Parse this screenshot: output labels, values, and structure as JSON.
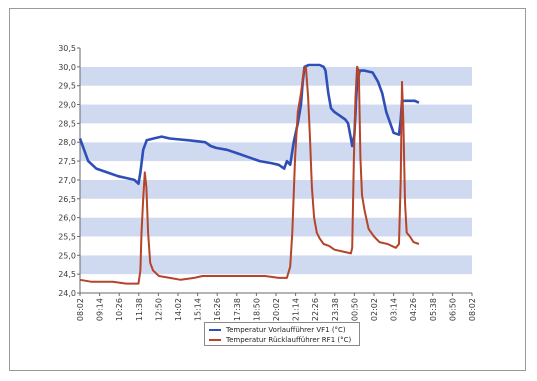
{
  "chart_data": {
    "type": "line",
    "title": "",
    "xlabel": "",
    "ylabel": "",
    "ylim": [
      24.0,
      30.5
    ],
    "y_ticks": [
      "24,0",
      "24,5",
      "25,0",
      "25,5",
      "26,0",
      "26,5",
      "27,0",
      "27,5",
      "28,0",
      "28,5",
      "29,0",
      "29,5",
      "30,0",
      "30,5"
    ],
    "x_ticks": [
      "08:02",
      "09:14",
      "10:26",
      "11:38",
      "12:50",
      "14:02",
      "15:14",
      "16:26",
      "17:38",
      "18:50",
      "20:02",
      "21:14",
      "22:26",
      "23:38",
      "00:50",
      "02:02",
      "03:14",
      "04:26",
      "05:38",
      "06:50",
      "08:02"
    ],
    "xlim": [
      0,
      1440
    ],
    "grid": "alternating horizontal bands",
    "legend_position": "bottom-center",
    "series": [
      {
        "name": "Temperatur Vorlaufführer VF1 (°C)",
        "color": "#2f4fb8",
        "points": [
          [
            0,
            28.1
          ],
          [
            15,
            27.8
          ],
          [
            30,
            27.5
          ],
          [
            60,
            27.3
          ],
          [
            100,
            27.2
          ],
          [
            140,
            27.1
          ],
          [
            200,
            27.0
          ],
          [
            215,
            26.9
          ],
          [
            222,
            27.2
          ],
          [
            232,
            27.8
          ],
          [
            245,
            28.05
          ],
          [
            270,
            28.1
          ],
          [
            300,
            28.15
          ],
          [
            330,
            28.1
          ],
          [
            400,
            28.05
          ],
          [
            460,
            28.0
          ],
          [
            480,
            27.9
          ],
          [
            500,
            27.85
          ],
          [
            540,
            27.8
          ],
          [
            580,
            27.7
          ],
          [
            620,
            27.6
          ],
          [
            660,
            27.5
          ],
          [
            700,
            27.45
          ],
          [
            730,
            27.4
          ],
          [
            750,
            27.3
          ],
          [
            760,
            27.5
          ],
          [
            772,
            27.4
          ],
          [
            785,
            28.0
          ],
          [
            800,
            28.5
          ],
          [
            812,
            29.0
          ],
          [
            818,
            29.6
          ],
          [
            825,
            30.0
          ],
          [
            840,
            30.05
          ],
          [
            880,
            30.05
          ],
          [
            895,
            30.0
          ],
          [
            902,
            29.9
          ],
          [
            912,
            29.3
          ],
          [
            922,
            28.9
          ],
          [
            935,
            28.8
          ],
          [
            955,
            28.7
          ],
          [
            975,
            28.6
          ],
          [
            985,
            28.5
          ],
          [
            995,
            28.1
          ],
          [
            1000,
            27.9
          ],
          [
            1008,
            28.2
          ],
          [
            1018,
            29.6
          ],
          [
            1028,
            29.9
          ],
          [
            1045,
            29.9
          ],
          [
            1075,
            29.85
          ],
          [
            1095,
            29.6
          ],
          [
            1110,
            29.3
          ],
          [
            1125,
            28.8
          ],
          [
            1140,
            28.5
          ],
          [
            1152,
            28.25
          ],
          [
            1172,
            28.2
          ],
          [
            1178,
            28.6
          ],
          [
            1183,
            29.1
          ],
          [
            1200,
            29.1
          ],
          [
            1230,
            29.1
          ],
          [
            1245,
            29.05
          ]
        ]
      },
      {
        "name": "Temperatur Rücklaufführer RF1 (°C)",
        "color": "#b5442a",
        "points": [
          [
            0,
            24.35
          ],
          [
            40,
            24.3
          ],
          [
            80,
            24.3
          ],
          [
            120,
            24.3
          ],
          [
            170,
            24.25
          ],
          [
            215,
            24.25
          ],
          [
            222,
            24.6
          ],
          [
            226,
            25.6
          ],
          [
            232,
            26.5
          ],
          [
            238,
            27.2
          ],
          [
            244,
            26.8
          ],
          [
            250,
            25.6
          ],
          [
            258,
            24.8
          ],
          [
            268,
            24.6
          ],
          [
            290,
            24.45
          ],
          [
            330,
            24.4
          ],
          [
            370,
            24.35
          ],
          [
            420,
            24.4
          ],
          [
            450,
            24.45
          ],
          [
            500,
            24.45
          ],
          [
            560,
            24.45
          ],
          [
            620,
            24.45
          ],
          [
            680,
            24.45
          ],
          [
            730,
            24.4
          ],
          [
            760,
            24.4
          ],
          [
            772,
            24.7
          ],
          [
            780,
            25.6
          ],
          [
            790,
            27.6
          ],
          [
            800,
            28.8
          ],
          [
            812,
            29.3
          ],
          [
            822,
            29.9
          ],
          [
            830,
            30.0
          ],
          [
            838,
            29.2
          ],
          [
            845,
            28.1
          ],
          [
            852,
            26.8
          ],
          [
            860,
            26.0
          ],
          [
            870,
            25.6
          ],
          [
            880,
            25.45
          ],
          [
            895,
            25.3
          ],
          [
            915,
            25.25
          ],
          [
            935,
            25.15
          ],
          [
            965,
            25.1
          ],
          [
            995,
            25.05
          ],
          [
            1000,
            25.2
          ],
          [
            1006,
            27.6
          ],
          [
            1012,
            29.2
          ],
          [
            1018,
            30.0
          ],
          [
            1024,
            29.9
          ],
          [
            1030,
            27.6
          ],
          [
            1036,
            26.6
          ],
          [
            1045,
            26.2
          ],
          [
            1060,
            25.7
          ],
          [
            1080,
            25.5
          ],
          [
            1100,
            25.35
          ],
          [
            1130,
            25.3
          ],
          [
            1160,
            25.2
          ],
          [
            1172,
            25.3
          ],
          [
            1178,
            27.0
          ],
          [
            1183,
            29.6
          ],
          [
            1188,
            28.5
          ],
          [
            1194,
            26.4
          ],
          [
            1200,
            25.6
          ],
          [
            1212,
            25.5
          ],
          [
            1225,
            25.35
          ],
          [
            1245,
            25.3
          ]
        ]
      }
    ]
  }
}
